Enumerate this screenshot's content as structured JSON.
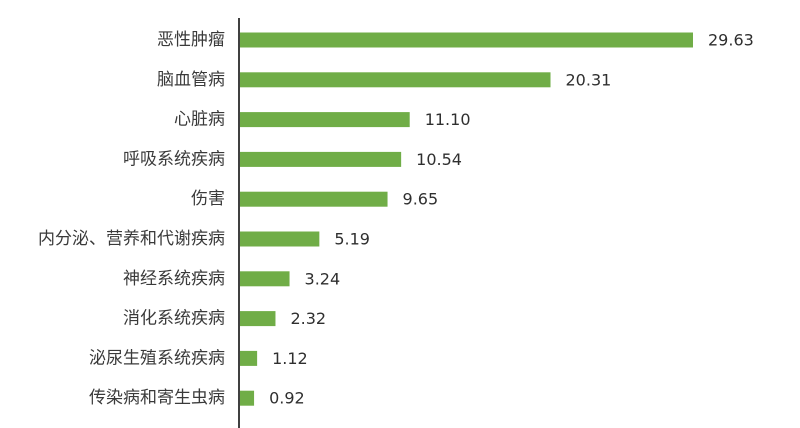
{
  "chart_data": {
    "type": "bar",
    "orientation": "horizontal",
    "categories": [
      "恶性肿瘤",
      "脑血管病",
      "心脏病",
      "呼吸系统疾病",
      "伤害",
      "内分泌、营养和代谢疾病",
      "神经系统疾病",
      "消化系统疾病",
      "泌尿生殖系统疾病",
      "传染病和寄生虫病"
    ],
    "values": [
      29.63,
      20.31,
      11.1,
      10.54,
      9.65,
      5.19,
      3.24,
      2.32,
      1.12,
      0.92
    ],
    "value_labels": [
      "29.63",
      "20.31",
      "11.10",
      "10.54",
      "9.65",
      "5.19",
      "3.24",
      "2.32",
      "1.12",
      "0.92"
    ],
    "title": "",
    "xlabel": "",
    "ylabel": "",
    "xlim": [
      0,
      30
    ],
    "grid": false,
    "legend": "none",
    "bar_color": "#70ad47",
    "axis_color": "#000000"
  }
}
